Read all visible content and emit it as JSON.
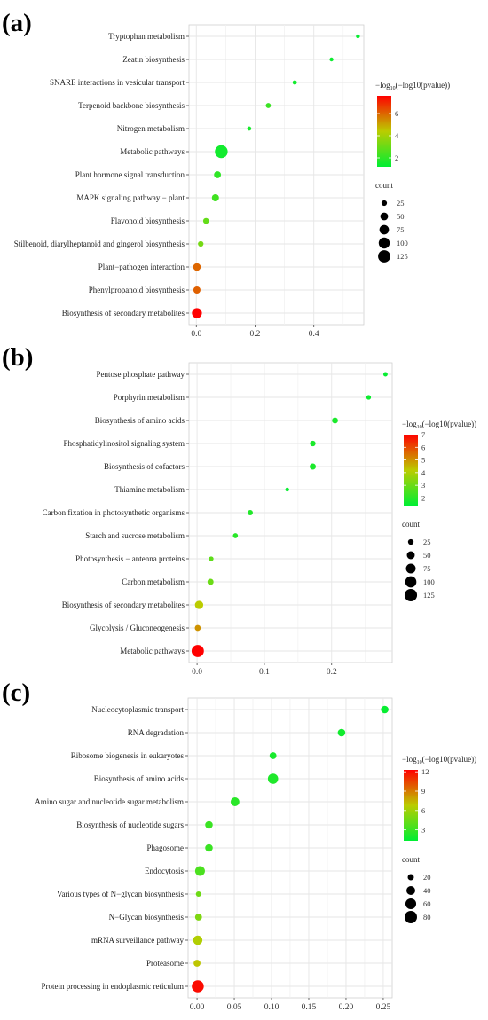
{
  "chart_data": [
    {
      "panel": "(a)",
      "type": "scatter",
      "categories": [
        "Tryptophan metabolism",
        "Zeatin biosynthesis",
        "SNARE interactions in vesicular transport",
        "Terpenoid backbone biosynthesis",
        "Nitrogen metabolism",
        "Metabolic pathways",
        "Plant hormone signal transduction",
        "MAPK signaling pathway − plant",
        "Flavonoid biosynthesis",
        "Stilbenoid, diarylheptanoid and gingerol biosynthesis",
        "Plant−pathogen interaction",
        "Phenylpropanoid biosynthesis",
        "Biosynthesis of secondary metabolites"
      ],
      "x": [
        0.55,
        0.46,
        0.335,
        0.245,
        0.18,
        0.085,
        0.072,
        0.065,
        0.033,
        0.015,
        0.002,
        0.002,
        0.002
      ],
      "count": [
        10,
        12,
        15,
        22,
        14,
        135,
        40,
        42,
        28,
        25,
        48,
        42,
        82
      ],
      "log_p": [
        1.3,
        1.4,
        1.5,
        2.2,
        1.6,
        1.5,
        2.0,
        2.3,
        2.9,
        3.2,
        6.0,
        6.1,
        7.6
      ],
      "xlim": [
        -0.025,
        0.57
      ],
      "xticks": [
        0.0,
        0.2,
        0.4
      ],
      "xtick_labels": [
        "0.0",
        "0.2",
        "0.4"
      ],
      "color_legend": {
        "title_prefix": "−log",
        "title_sub": "10",
        "title_suffix": "(−log10(pvalue))",
        "ticks": [
          2,
          4,
          6
        ],
        "tick_labels": [
          "2",
          "4",
          "6"
        ],
        "min": 1.2,
        "max": 7.6
      },
      "size_legend": {
        "title": "count",
        "values": [
          25,
          50,
          75,
          100,
          125
        ],
        "labels": [
          "25",
          "50",
          "75",
          "100",
          "125"
        ],
        "max": 135
      }
    },
    {
      "panel": "(b)",
      "type": "scatter",
      "categories": [
        "Pentose phosphate pathway",
        "Porphyrin metabolism",
        "Biosynthesis of amino acids",
        "Phosphatidylinositol signaling system",
        "Biosynthesis of cofactors",
        "Thiamine metabolism",
        "Carbon fixation in photosynthetic organisms",
        "Starch and sucrose metabolism",
        "Photosynthesis − antenna proteins",
        "Carbon metabolism",
        "Biosynthesis of secondary metabolites",
        "Glycolysis / Gluconeogenesis",
        "Metabolic pathways"
      ],
      "x": [
        0.28,
        0.255,
        0.205,
        0.172,
        0.172,
        0.134,
        0.079,
        0.057,
        0.021,
        0.02,
        0.003,
        0.001,
        0.001
      ],
      "count": [
        15,
        18,
        28,
        25,
        30,
        10,
        22,
        20,
        18,
        30,
        55,
        28,
        120
      ],
      "log_p": [
        1.5,
        1.6,
        1.8,
        1.8,
        1.8,
        1.5,
        1.9,
        2.0,
        2.8,
        3.0,
        4.2,
        5.0,
        7.0
      ],
      "xlim": [
        -0.012,
        0.29
      ],
      "xticks": [
        0.0,
        0.1,
        0.2
      ],
      "xtick_labels": [
        "0.0",
        "0.1",
        "0.2"
      ],
      "color_legend": {
        "title_prefix": "−log",
        "title_sub": "10",
        "title_suffix": "(−log10(pvalue))",
        "ticks": [
          2,
          3,
          4,
          5,
          6,
          7
        ],
        "tick_labels": [
          "2",
          "3",
          "4",
          "5",
          "6",
          "7"
        ],
        "min": 1.4,
        "max": 7.0
      },
      "size_legend": {
        "title": "count",
        "values": [
          25,
          50,
          75,
          100,
          125
        ],
        "labels": [
          "25",
          "50",
          "75",
          "100",
          "125"
        ],
        "max": 130
      }
    },
    {
      "panel": "(c)",
      "type": "scatter",
      "categories": [
        "Nucleocytoplasmic transport",
        "RNA degradation",
        "Ribosome biogenesis in eukaryotes",
        "Biosynthesis of amino acids",
        "Amino sugar and nucleotide sugar metabolism",
        "Biosynthesis of nucleotide sugars",
        "Phagosome",
        "Endocytosis",
        "Various types of N−glycan biosynthesis",
        "N−Glycan biosynthesis",
        "mRNA surveillance pathway",
        "Proteasome",
        "Protein processing in endoplasmic reticulum"
      ],
      "x": [
        0.252,
        0.194,
        0.102,
        0.102,
        0.051,
        0.016,
        0.016,
        0.004,
        0.002,
        0.002,
        0.001,
        0.0,
        0.001
      ],
      "count": [
        30,
        30,
        25,
        55,
        40,
        30,
        30,
        50,
        15,
        25,
        45,
        25,
        75
      ],
      "log_p": [
        1.5,
        1.8,
        2.0,
        2.2,
        2.5,
        3.0,
        3.0,
        3.5,
        4.5,
        5.0,
        6.5,
        7.0,
        12.0
      ],
      "xlim": [
        -0.012,
        0.262
      ],
      "xticks": [
        0.0,
        0.05,
        0.1,
        0.15,
        0.2,
        0.25
      ],
      "xtick_labels": [
        "0.00",
        "0.05",
        "0.10",
        "0.15",
        "0.20",
        "0.25"
      ],
      "color_legend": {
        "title_prefix": "−log",
        "title_sub": "10",
        "title_suffix": "(−log10(pvalue))",
        "ticks": [
          3,
          6,
          9,
          12
        ],
        "tick_labels": [
          "3",
          "6",
          "9",
          "12"
        ],
        "min": 1.3,
        "max": 12.3
      },
      "size_legend": {
        "title": "count",
        "values": [
          20,
          40,
          60,
          80
        ],
        "labels": [
          "20",
          "40",
          "60",
          "80"
        ],
        "max": 85
      }
    }
  ],
  "colors": {
    "low": "#00ee33",
    "mid": "#bbcc00",
    "high": "#ff0000",
    "panel_bg": "#ffffff",
    "grid": "#e6e6e6",
    "border": "#d0d0d0"
  }
}
